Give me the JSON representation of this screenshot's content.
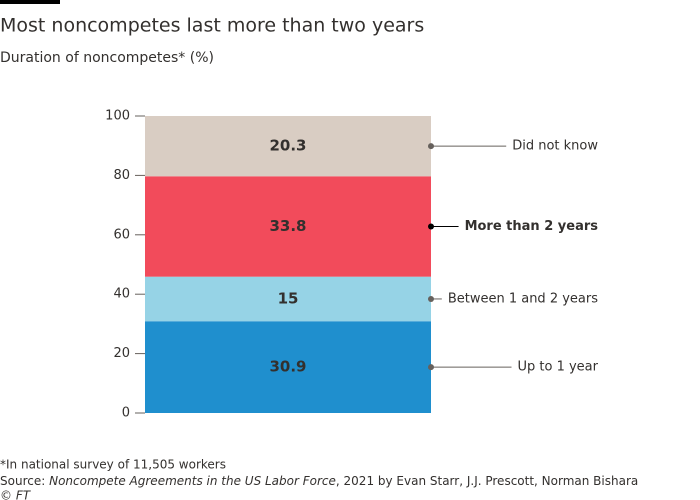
{
  "chart_data": {
    "type": "stacked-bar",
    "title": "Most noncompetes last more than two years",
    "subtitle": "Duration of noncompetes* (%)",
    "series": [
      {
        "name": "Up to 1 year",
        "color": "#1f8fce",
        "label_color": "#ffffff",
        "bold": false,
        "values": [
          30.9
        ]
      },
      {
        "name": "Between 1 and 2 years",
        "color": "#96d3e6",
        "label_color": "#000000",
        "bold": false,
        "values": [
          15
        ]
      },
      {
        "name": "More than 2 years",
        "color": "#f24b5b",
        "label_color": "#ffffff",
        "bold": true,
        "values": [
          33.8
        ]
      },
      {
        "name": "Did not know",
        "color": "#d9cdc3",
        "label_color": "#000000",
        "bold": false,
        "values": [
          20.3
        ]
      }
    ],
    "ylim": [
      0,
      100
    ],
    "yticks": [
      0,
      20,
      40,
      60,
      80,
      100
    ],
    "footnote": "*In national survey of 11,505 workers",
    "source": {
      "label": "Source:",
      "title": "Noncompete Agreements in the US Labor Force",
      "rest": ", 2021 by Evan Starr, J.J. Prescott, Norman Bishara"
    },
    "credit": "© FT"
  }
}
